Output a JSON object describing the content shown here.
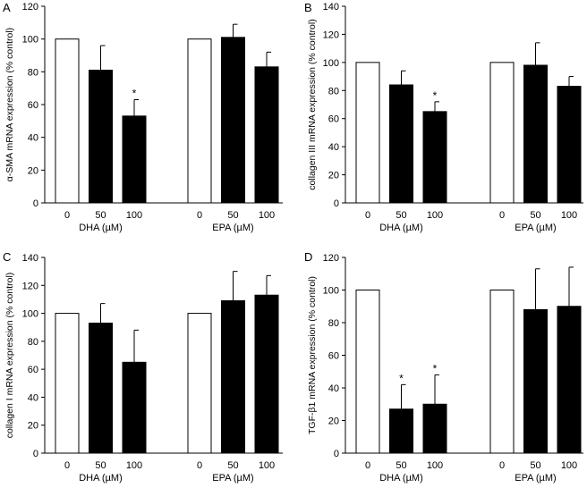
{
  "figure": {
    "colors": {
      "control": "#ffffff",
      "treated": "#000000",
      "axis": "#000000"
    }
  },
  "chart_data": [
    {
      "panel": "A",
      "type": "bar",
      "ylabel": "α-SMA mRNA expression (% control)",
      "ylim": [
        0,
        120
      ],
      "yticks": [
        0,
        20,
        40,
        60,
        80,
        100,
        120
      ],
      "groups": [
        {
          "label": "DHA (µM)",
          "categories": [
            "0",
            "50",
            "100"
          ],
          "values": [
            100,
            81,
            53
          ],
          "errors": [
            0,
            15,
            10
          ],
          "significant": [
            false,
            false,
            true
          ]
        },
        {
          "label": "EPA (µM)",
          "categories": [
            "0",
            "50",
            "100"
          ],
          "values": [
            100,
            101,
            83
          ],
          "errors": [
            0,
            8,
            9
          ],
          "significant": [
            false,
            false,
            false
          ]
        }
      ]
    },
    {
      "panel": "B",
      "type": "bar",
      "ylabel": "collagen III mRNA expression (% control)",
      "ylim": [
        0,
        140
      ],
      "yticks": [
        0,
        20,
        40,
        60,
        80,
        100,
        120,
        140
      ],
      "groups": [
        {
          "label": "DHA (µM)",
          "categories": [
            "0",
            "50",
            "100"
          ],
          "values": [
            100,
            84,
            65
          ],
          "errors": [
            0,
            10,
            7
          ],
          "significant": [
            false,
            false,
            true
          ]
        },
        {
          "label": "EPA (µM)",
          "categories": [
            "0",
            "50",
            "100"
          ],
          "values": [
            100,
            98,
            83
          ],
          "errors": [
            0,
            16,
            7
          ],
          "significant": [
            false,
            false,
            false
          ]
        }
      ]
    },
    {
      "panel": "C",
      "type": "bar",
      "ylabel": "collagen I mRNA expression (% control)",
      "ylim": [
        0,
        140
      ],
      "yticks": [
        0,
        20,
        40,
        60,
        80,
        100,
        120,
        140
      ],
      "groups": [
        {
          "label": "DHA (µM)",
          "categories": [
            "0",
            "50",
            "100"
          ],
          "values": [
            100,
            93,
            65
          ],
          "errors": [
            0,
            14,
            23
          ],
          "significant": [
            false,
            false,
            false
          ]
        },
        {
          "label": "EPA (µM)",
          "categories": [
            "0",
            "50",
            "100"
          ],
          "values": [
            100,
            109,
            113
          ],
          "errors": [
            0,
            21,
            14
          ],
          "significant": [
            false,
            false,
            false
          ]
        }
      ]
    },
    {
      "panel": "D",
      "type": "bar",
      "ylabel": "TGF-β1 mRNA expression (% control)",
      "ylim": [
        0,
        120
      ],
      "yticks": [
        0,
        20,
        40,
        60,
        80,
        100,
        120
      ],
      "groups": [
        {
          "label": "DHA (µM)",
          "categories": [
            "0",
            "50",
            "100"
          ],
          "values": [
            100,
            27,
            30
          ],
          "errors": [
            0,
            15,
            18
          ],
          "significant": [
            false,
            true,
            true
          ]
        },
        {
          "label": "EPA (µM)",
          "categories": [
            "0",
            "50",
            "100"
          ],
          "values": [
            100,
            88,
            90
          ],
          "errors": [
            0,
            25,
            24
          ],
          "significant": [
            false,
            false,
            false
          ]
        }
      ]
    }
  ]
}
